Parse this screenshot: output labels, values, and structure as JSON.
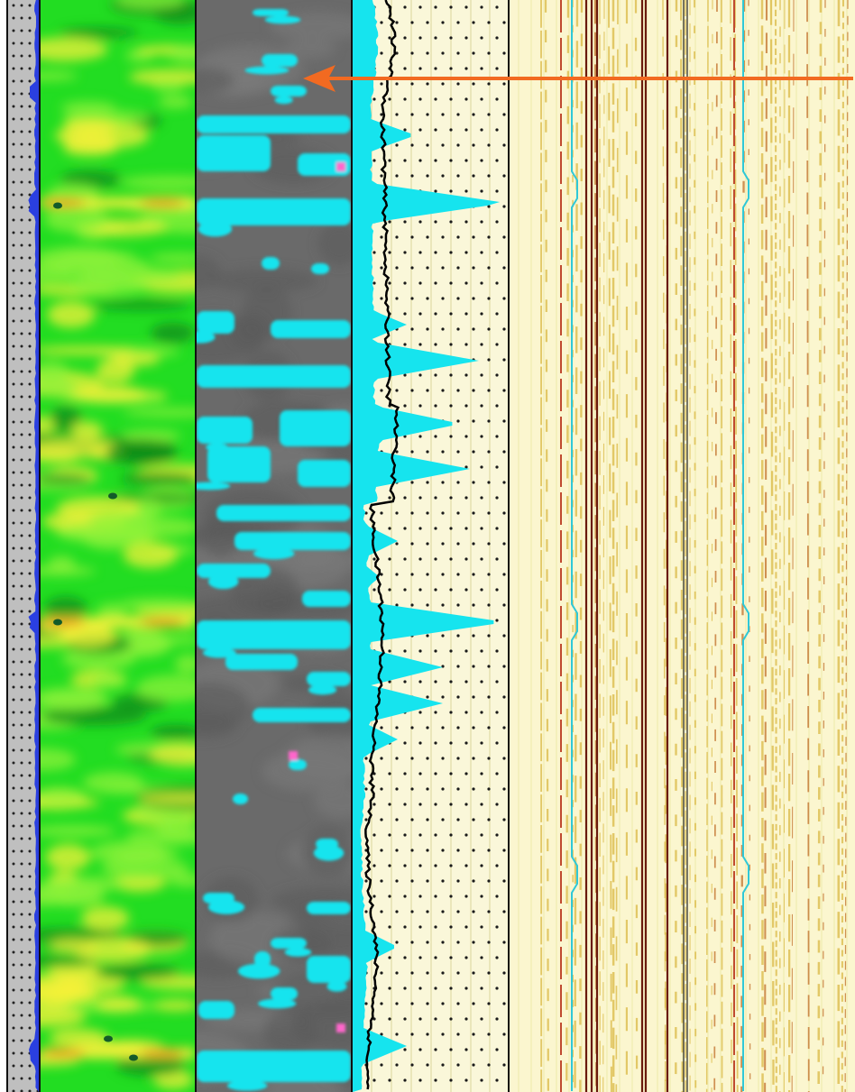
{
  "colors": {
    "track1_bg": "#bfbfbf",
    "track1_curve": "#2a3fe0",
    "green_base": "#22dd22",
    "green_light": "#8ef23a",
    "yellow_patch": "#f4f03a",
    "orange_streak": "#f0a020",
    "dark_green_spot": "#0a8a18",
    "gray_track": "#6a6a6a",
    "cyan_patch": "#16e4ee",
    "magenta_spot": "#ff66cc",
    "cream_bg": "#faf7d9",
    "black_curve": "#000000",
    "grid_line": "#d9d59a",
    "dashed_line": "#c04a30",
    "cyan_curve": "#2fc8d8",
    "dark_red_line": "#6a1a0c",
    "arrow": "#f26a21"
  },
  "tracks": [
    {
      "name": "porosity-log-track",
      "type": "dotted-curve"
    },
    {
      "name": "green-image-track",
      "type": "heatmap-image"
    },
    {
      "name": "gray-cyan-image-track",
      "type": "classified-image"
    },
    {
      "name": "curve-fill-track",
      "type": "curve-with-fill"
    },
    {
      "name": "waveform-track",
      "type": "variable-density"
    }
  ],
  "annotation": {
    "icon": "arrow-left-icon"
  }
}
